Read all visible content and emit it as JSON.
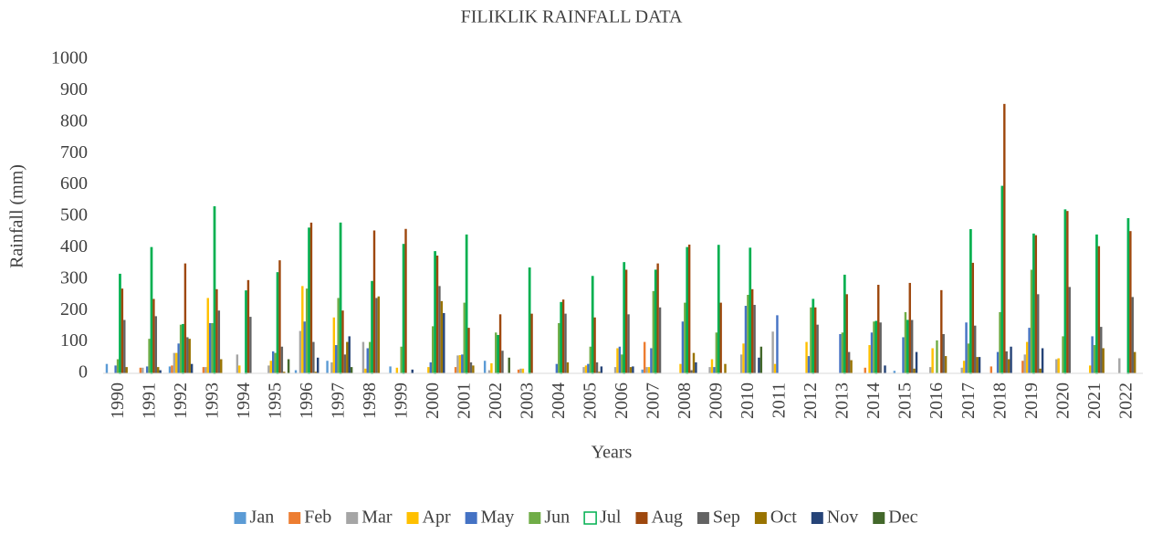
{
  "chart_data": {
    "type": "bar",
    "title": "FILIKLIK RAINFALL DATA",
    "xlabel": "Years",
    "ylabel": "Rainfall (mm)",
    "categories": [
      "1990",
      "1991",
      "1992",
      "1993",
      "1994",
      "1995",
      "1996",
      "1997",
      "1998",
      "1999",
      "2000",
      "2001",
      "2002",
      "2003",
      "2004",
      "2005",
      "2006",
      "2007",
      "2008",
      "2009",
      "2010",
      "2011",
      "2012",
      "2013",
      "2014",
      "2015",
      "2016",
      "2017",
      "2018",
      "2019",
      "2020",
      "2021",
      "2022"
    ],
    "ylim": [
      0,
      1000
    ],
    "yticks": [
      0,
      100,
      200,
      300,
      400,
      500,
      600,
      700,
      800,
      900,
      1000
    ],
    "grid": false,
    "legend": "bottom",
    "series": [
      {
        "name": "Jan",
        "color": "#5b9bd5",
        "values": [
          30,
          0,
          22,
          0,
          0,
          0,
          10,
          40,
          0,
          22,
          0,
          0,
          40,
          0,
          0,
          0,
          0,
          12,
          0,
          0,
          0,
          0,
          0,
          0,
          0,
          8,
          0,
          0,
          0,
          0,
          0,
          0,
          0
        ]
      },
      {
        "name": "Feb",
        "color": "#ed7d31",
        "values": [
          0,
          18,
          25,
          20,
          0,
          0,
          0,
          0,
          0,
          0,
          0,
          20,
          0,
          12,
          0,
          0,
          0,
          100,
          0,
          0,
          0,
          0,
          0,
          0,
          18,
          0,
          0,
          0,
          22,
          40,
          0,
          0,
          0
        ]
      },
      {
        "name": "Mar",
        "color": "#a5a5a5",
        "values": [
          0,
          18,
          65,
          20,
          60,
          25,
          135,
          35,
          100,
          0,
          0,
          57,
          10,
          15,
          0,
          20,
          20,
          20,
          0,
          20,
          60,
          133,
          0,
          0,
          0,
          0,
          20,
          18,
          0,
          60,
          45,
          0,
          48
        ]
      },
      {
        "name": "Apr",
        "color": "#ffc000",
        "values": [
          0,
          0,
          65,
          240,
          25,
          40,
          278,
          178,
          15,
          18,
          20,
          58,
          32,
          15,
          0,
          25,
          80,
          20,
          30,
          45,
          95,
          30,
          100,
          0,
          90,
          0,
          80,
          40,
          0,
          100,
          48,
          25,
          0
        ]
      },
      {
        "name": "May",
        "color": "#4472c4",
        "values": [
          25,
          22,
          95,
          160,
          0,
          70,
          165,
          90,
          80,
          0,
          35,
          60,
          0,
          0,
          30,
          30,
          85,
          80,
          165,
          20,
          215,
          185,
          55,
          125,
          130,
          115,
          0,
          162,
          68,
          145,
          0,
          118,
          0
        ]
      },
      {
        "name": "Jun",
        "color": "#70ad47",
        "values": [
          45,
          110,
          155,
          160,
          0,
          65,
          270,
          240,
          100,
          85,
          150,
          225,
          130,
          0,
          160,
          85,
          60,
          262,
          225,
          130,
          250,
          0,
          210,
          130,
          165,
          195,
          105,
          95,
          195,
          330,
          118,
          90,
          0
        ]
      },
      {
        "name": "Jul",
        "color": "#00b050",
        "outline": true,
        "values": [
          315,
          400,
          155,
          530,
          262,
          320,
          462,
          478,
          292,
          410,
          387,
          440,
          120,
          335,
          225,
          308,
          352,
          328,
          400,
          407,
          398,
          0,
          235,
          312,
          165,
          168,
          0,
          457,
          595,
          443,
          520,
          440,
          492
        ]
      },
      {
        "name": "Aug",
        "color": "#9e480e",
        "values": [
          270,
          237,
          350,
          268,
          297,
          360,
          480,
          200,
          455,
          460,
          375,
          145,
          188,
          190,
          235,
          178,
          330,
          350,
          410,
          225,
          268,
          0,
          210,
          252,
          282,
          288,
          265,
          352,
          858,
          440,
          517,
          405,
          453
        ]
      },
      {
        "name": "Sep",
        "color": "#636363",
        "values": [
          170,
          182,
          115,
          200,
          180,
          85,
          100,
          60,
          240,
          0,
          278,
          35,
          72,
          0,
          190,
          35,
          188,
          210,
          10,
          0,
          218,
          0,
          155,
          68,
          162,
          170,
          125,
          152,
          70,
          252,
          275,
          148,
          243
        ]
      },
      {
        "name": "Oct",
        "color": "#997300",
        "values": [
          20,
          20,
          110,
          45,
          0,
          5,
          5,
          100,
          245,
          0,
          230,
          25,
          0,
          0,
          35,
          5,
          20,
          0,
          65,
          30,
          0,
          0,
          0,
          42,
          0,
          15,
          55,
          52,
          45,
          15,
          0,
          80,
          68
        ]
      },
      {
        "name": "Nov",
        "color": "#264478",
        "values": [
          0,
          10,
          30,
          0,
          0,
          0,
          50,
          118,
          0,
          12,
          192,
          0,
          0,
          0,
          0,
          22,
          22,
          0,
          35,
          0,
          50,
          0,
          0,
          0,
          25,
          68,
          0,
          52,
          85,
          80,
          0,
          0,
          0
        ]
      },
      {
        "name": "Dec",
        "color": "#43682b",
        "values": [
          0,
          0,
          0,
          0,
          0,
          45,
          0,
          20,
          0,
          0,
          0,
          0,
          50,
          0,
          0,
          0,
          0,
          0,
          0,
          0,
          85,
          0,
          0,
          0,
          0,
          0,
          0,
          0,
          0,
          0,
          0,
          0,
          0
        ]
      }
    ]
  }
}
